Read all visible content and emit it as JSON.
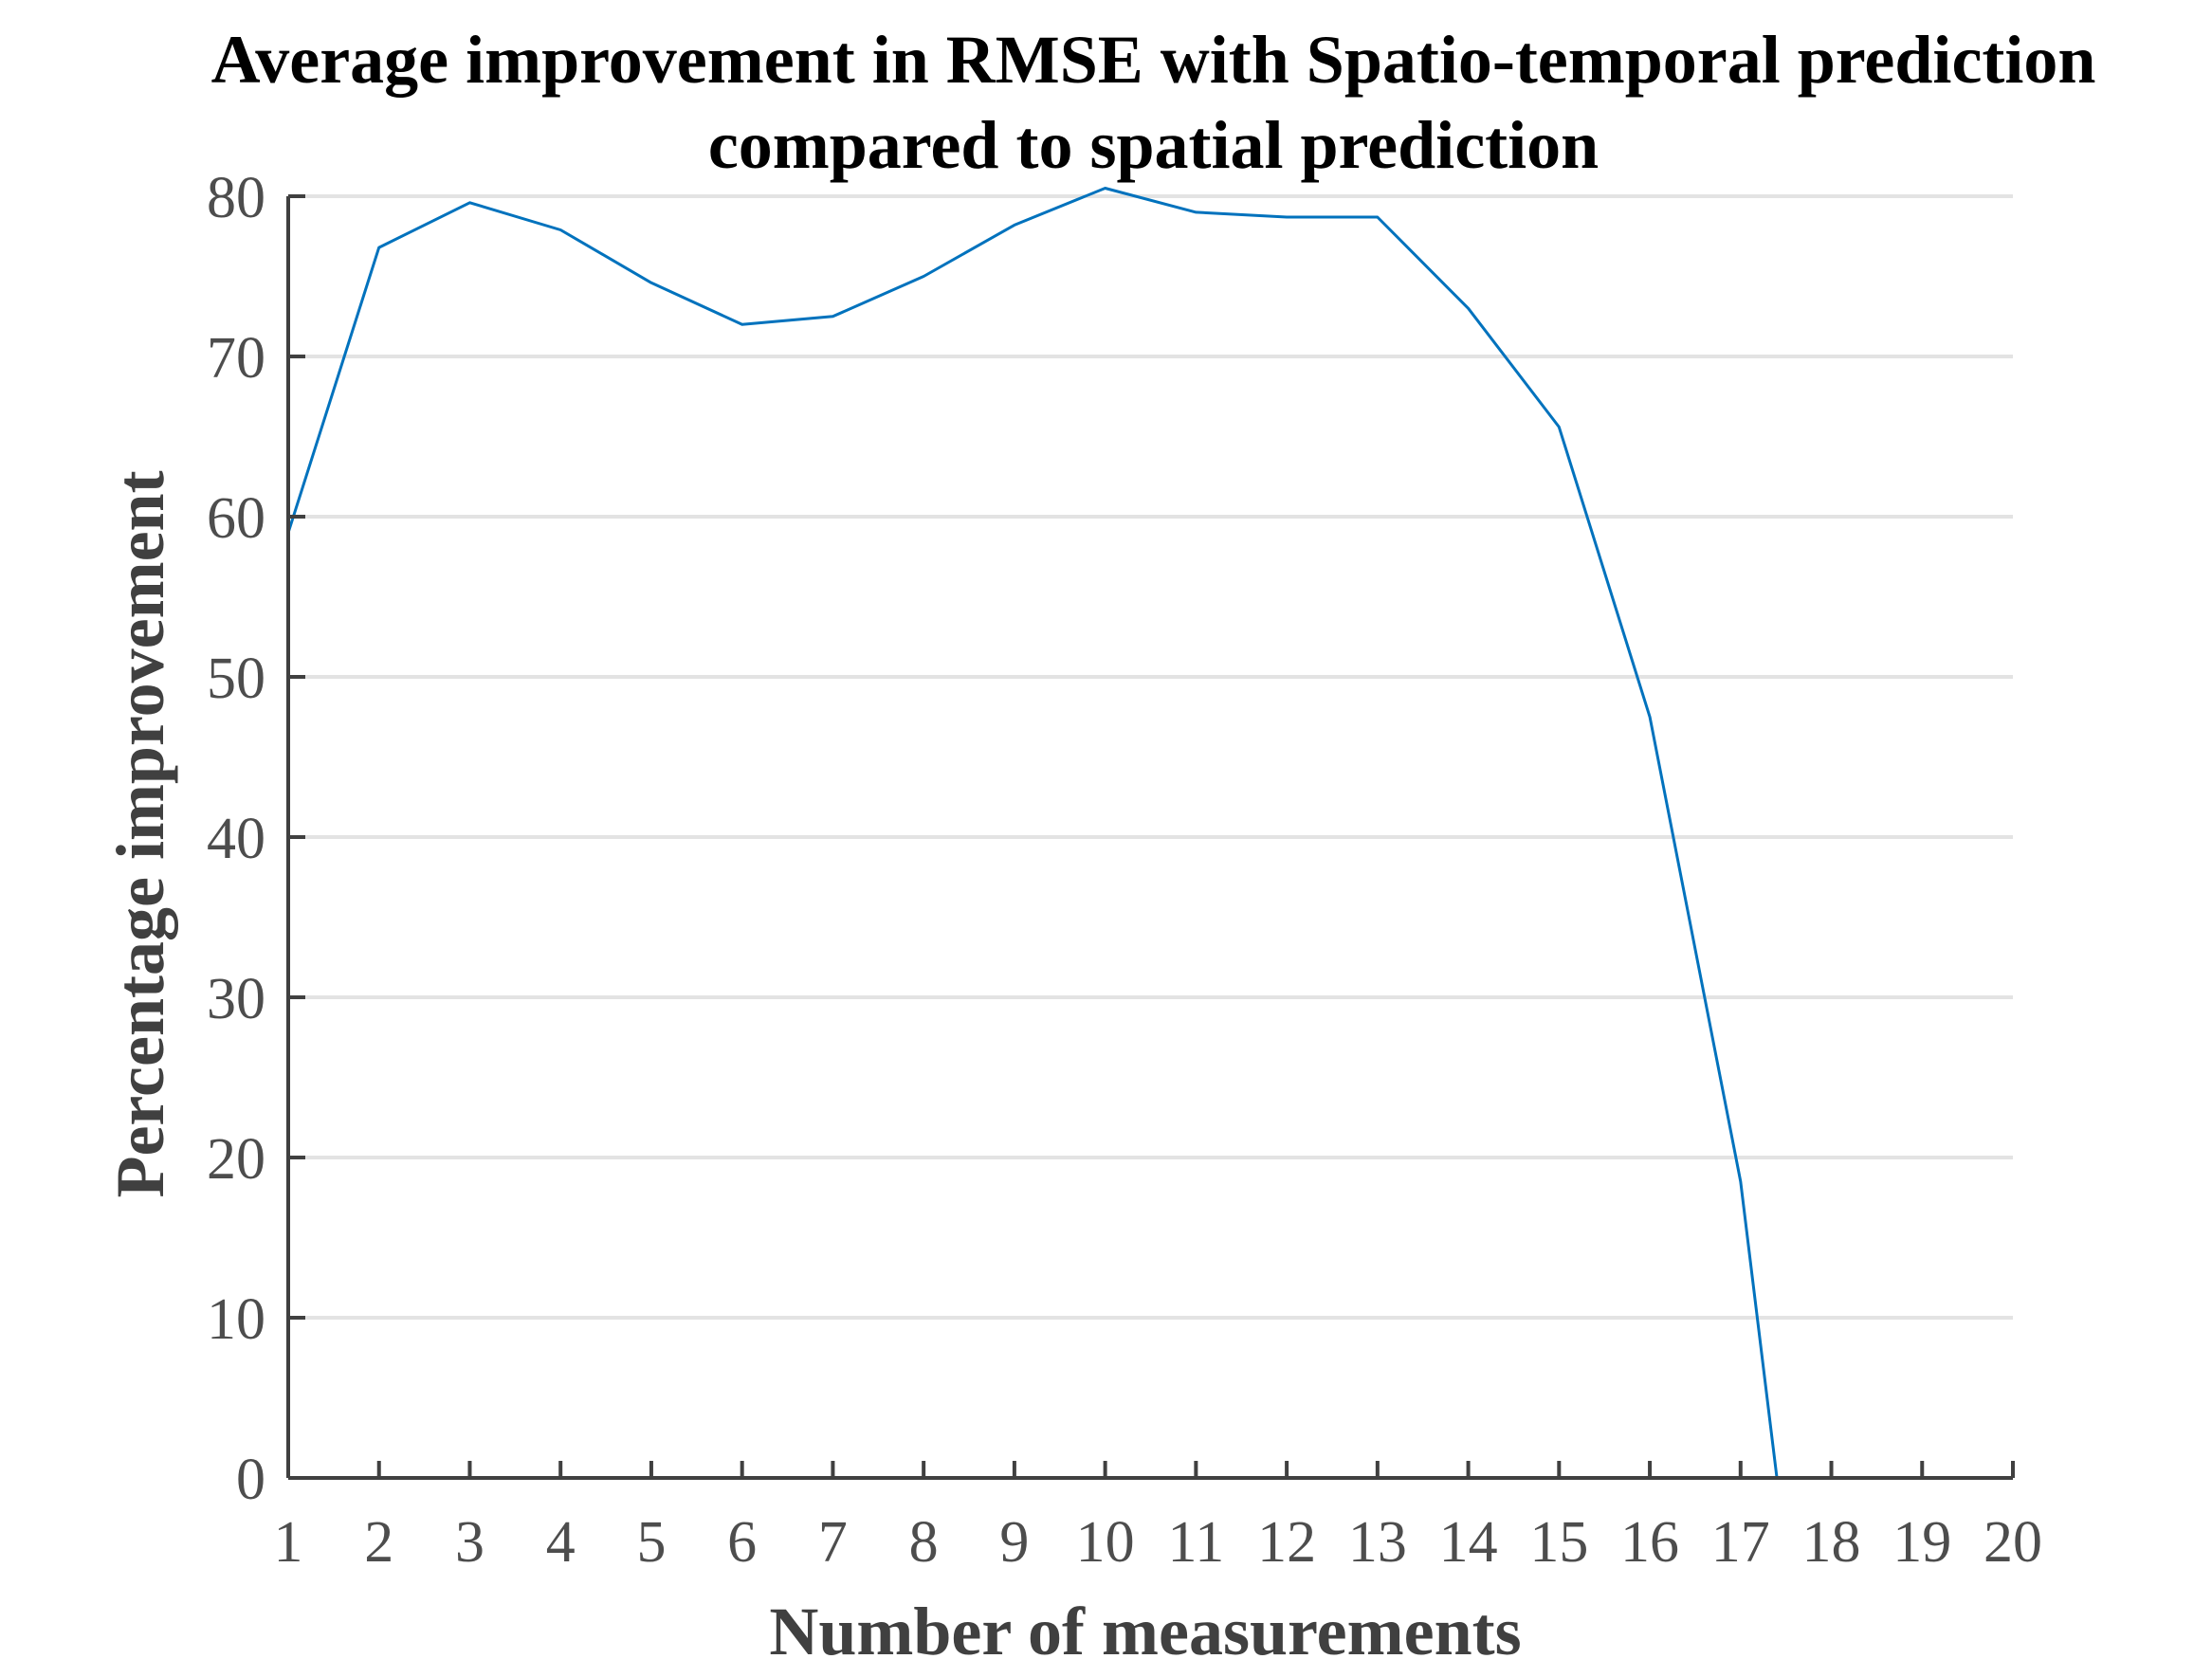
{
  "chart_data": {
    "type": "line",
    "title_lines": [
      "Average improvement in RMSE with Spatio-temporal prediction",
      "compared to spatial prediction"
    ],
    "xlabel": "Number of measurements",
    "ylabel": "Percentage improvement",
    "xlim": [
      1,
      20
    ],
    "ylim": [
      0,
      80
    ],
    "xticks": [
      1,
      2,
      3,
      4,
      5,
      6,
      7,
      8,
      9,
      10,
      11,
      12,
      13,
      14,
      15,
      16,
      17,
      18,
      19,
      20
    ],
    "yticks": [
      0,
      10,
      20,
      30,
      40,
      50,
      60,
      70,
      80
    ],
    "grid": "horizontal",
    "series": [
      {
        "color": "#0072BD",
        "x": [
          1,
          2,
          3,
          4,
          5,
          6,
          7,
          8,
          9,
          10,
          11,
          12,
          13,
          14,
          15,
          16,
          17,
          17.4
        ],
        "y": [
          59,
          76.8,
          79.6,
          77.9,
          74.6,
          72,
          72.5,
          75,
          78.2,
          80.5,
          79,
          78.7,
          78.7,
          73,
          65.6,
          47.5,
          18.5,
          0
        ]
      }
    ]
  },
  "colors": {
    "axis": "#404040",
    "tick_label": "#4d4d4d",
    "grid": "#e3e3e3",
    "title": "#000000",
    "line": "#0072BD"
  }
}
